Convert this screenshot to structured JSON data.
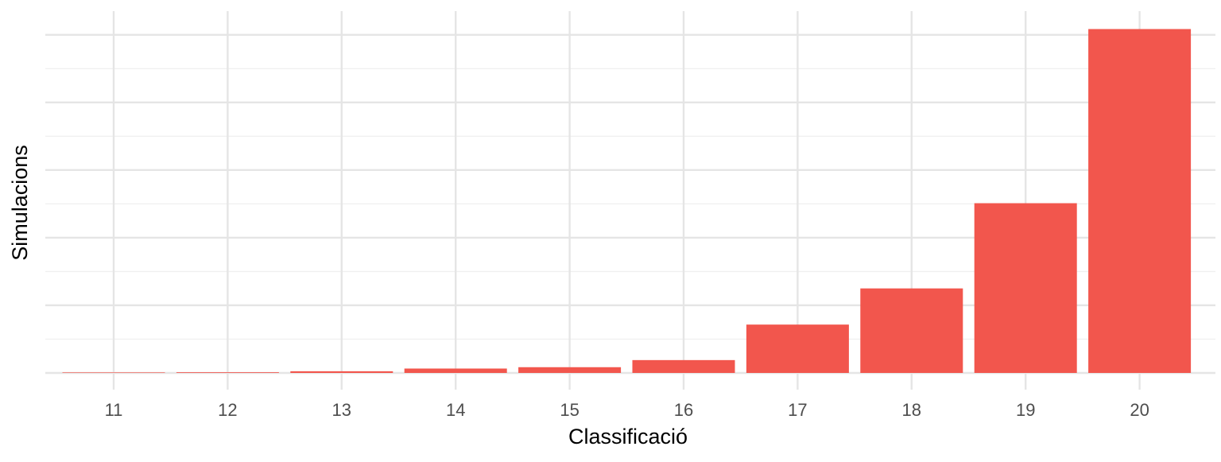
{
  "chart_data": {
    "type": "bar",
    "title": "",
    "xlabel": "Classificació",
    "ylabel": "Simulacions",
    "categories": [
      "11",
      "12",
      "13",
      "14",
      "15",
      "16",
      "17",
      "18",
      "19",
      "20"
    ],
    "values": [
      0.15,
      0.2,
      0.5,
      1.3,
      1.7,
      3.8,
      14.3,
      25.0,
      50.2,
      101.7
    ],
    "ylim": [
      0,
      107
    ],
    "y_ticks_labeled": false,
    "grid": true,
    "legend": "none",
    "colors": {
      "bar": "#F2564D",
      "grid_major": "#E5E5E5",
      "grid_minor": "#F0F0F0",
      "tick_text": "#4D4D4D",
      "axis_title": "#000000"
    }
  }
}
